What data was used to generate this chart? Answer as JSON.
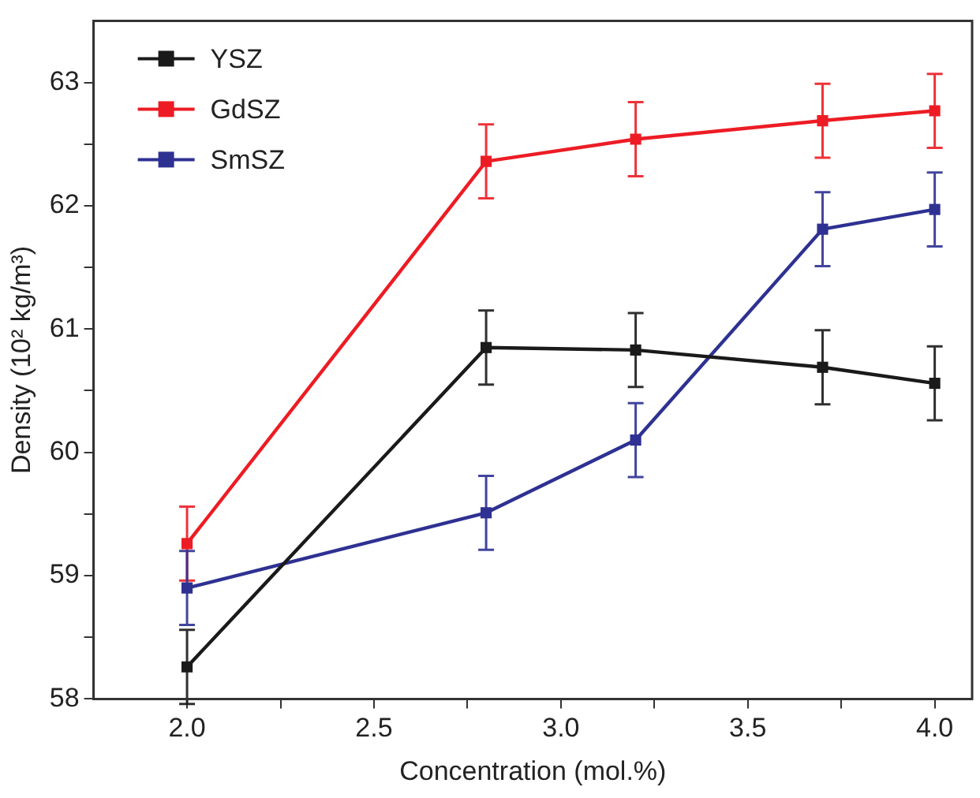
{
  "chart_data": {
    "type": "line",
    "xlabel": "Concentration (mol.%)",
    "ylabel": "Density (10² kg/m³)",
    "x": [
      2.0,
      2.8,
      3.2,
      3.7,
      4.0
    ],
    "series": [
      {
        "name": "YSZ",
        "color": "#1a1a1a",
        "values": [
          58.26,
          60.85,
          60.83,
          60.69,
          60.56
        ],
        "errors": [
          0.3,
          0.3,
          0.3,
          0.3,
          0.3
        ]
      },
      {
        "name": "GdSZ",
        "color": "#ed1c24",
        "values": [
          59.26,
          62.36,
          62.54,
          62.69,
          62.77
        ],
        "errors": [
          0.3,
          0.3,
          0.3,
          0.3,
          0.3
        ]
      },
      {
        "name": "SmSZ",
        "color": "#2e3192",
        "values": [
          58.9,
          59.51,
          60.1,
          61.81,
          61.97
        ],
        "errors": [
          0.3,
          0.3,
          0.3,
          0.3,
          0.3
        ]
      }
    ],
    "xlim": [
      1.75,
      4.1
    ],
    "xticks": [
      {
        "value": 2.0,
        "label": "2.0"
      },
      {
        "value": 2.25,
        "label": null
      },
      {
        "value": 2.5,
        "label": "2.5"
      },
      {
        "value": 2.75,
        "label": null
      },
      {
        "value": 3.0,
        "label": "3.0"
      },
      {
        "value": 3.25,
        "label": null
      },
      {
        "value": 3.5,
        "label": "3.5"
      },
      {
        "value": 3.75,
        "label": null
      },
      {
        "value": 4.0,
        "label": "4.0"
      }
    ],
    "ylim": [
      58,
      63.5
    ],
    "yticks": [
      58,
      {
        "value": 58.5,
        "label": null
      },
      59,
      {
        "value": 59.5,
        "label": null
      },
      60,
      {
        "value": 60.5,
        "label": null
      },
      61,
      {
        "value": 61.5,
        "label": null
      },
      62,
      {
        "value": 62.5,
        "label": null
      },
      63
    ],
    "grid": false,
    "legend": "top left",
    "marker": "square",
    "line_style": "solid"
  }
}
